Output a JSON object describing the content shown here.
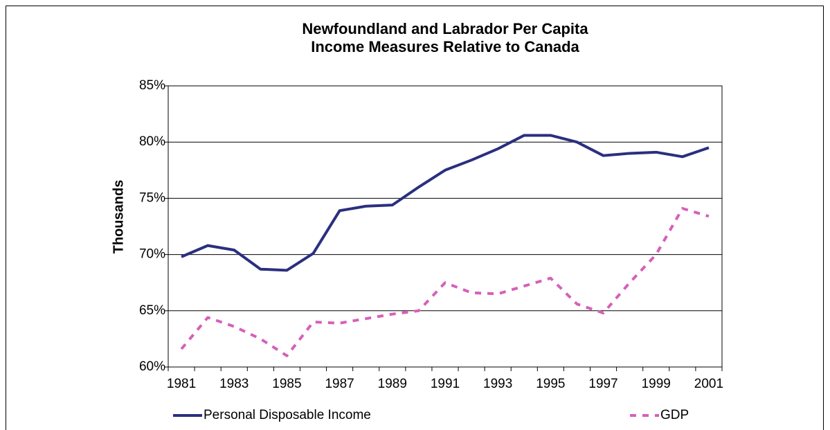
{
  "chart_data": {
    "type": "line",
    "title": [
      "Newfoundland and Labrador Per Capita",
      "Income Measures Relative to Canada"
    ],
    "y_label": "Thousands",
    "categories": [
      "1981",
      null,
      "1983",
      null,
      "1985",
      null,
      "1987",
      null,
      "1989",
      null,
      "1991",
      null,
      "1993",
      null,
      "1995",
      null,
      "1997",
      null,
      "1999",
      null,
      "2001"
    ],
    "series": [
      {
        "name": "Personal Disposable Income",
        "color": "#2b2f7f",
        "dash": false,
        "values": [
          69.8,
          70.8,
          70.4,
          68.7,
          68.6,
          70.1,
          73.9,
          74.3,
          74.4,
          76.0,
          77.5,
          78.4,
          79.4,
          80.6,
          80.6,
          80.0,
          78.8,
          79.0,
          79.1,
          78.7,
          79.5
        ]
      },
      {
        "name": "GDP",
        "color": "#d660b8",
        "dash": true,
        "values": [
          61.6,
          64.4,
          63.6,
          62.5,
          61.0,
          64.0,
          63.9,
          64.3,
          64.7,
          65.0,
          67.5,
          66.6,
          66.5,
          67.2,
          67.9,
          65.6,
          64.8,
          67.5,
          70.0,
          74.1,
          73.4
        ]
      }
    ],
    "ylim": [
      60,
      85
    ],
    "yticks": [
      {
        "value": 60,
        "label": "60%"
      },
      {
        "value": 65,
        "label": "65%"
      },
      {
        "value": 70,
        "label": "70%"
      },
      {
        "value": 75,
        "label": "75%"
      },
      {
        "value": 80,
        "label": "80%"
      },
      {
        "value": 85,
        "label": "85%"
      }
    ],
    "grid": true
  }
}
